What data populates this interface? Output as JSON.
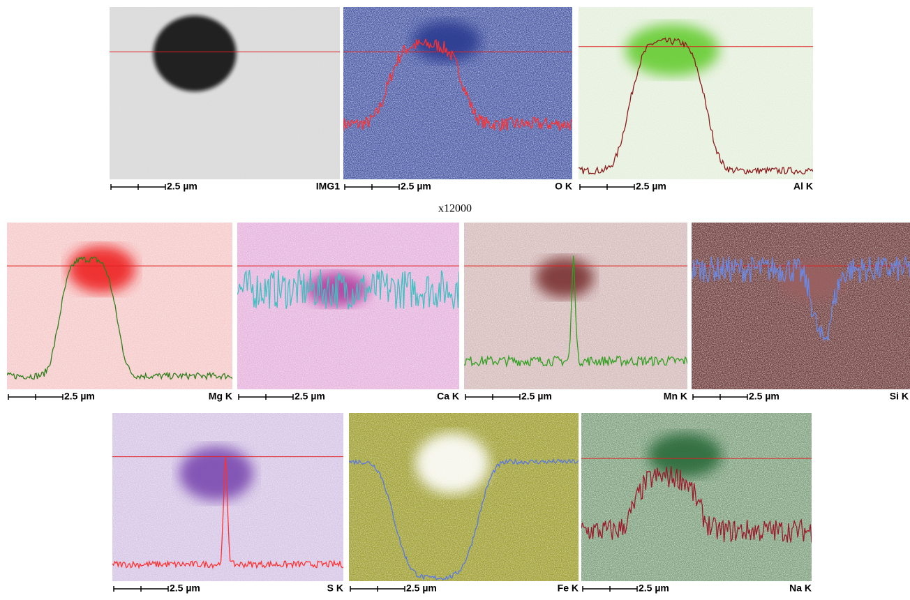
{
  "figure": {
    "magnification": "x12000",
    "panels": [
      {
        "scale": "2.5 µm",
        "label": "IMG1"
      },
      {
        "scale": "2.5 µm",
        "label": "O K"
      },
      {
        "scale": "2.5 µm",
        "label": "Al K"
      },
      {
        "scale": "2.5 µm",
        "label": "Mg K"
      },
      {
        "scale": "2.5 µm",
        "label": "Ca K"
      },
      {
        "scale": "2.5 µm",
        "label": "Mn K"
      },
      {
        "scale": "2.5 µm",
        "label": "Si K"
      },
      {
        "scale": "2.5 µm",
        "label": "S K"
      },
      {
        "scale": "2.5 µm",
        "label": "Fe K"
      },
      {
        "scale": "2.5 µm",
        "label": "Na K"
      }
    ]
  }
}
